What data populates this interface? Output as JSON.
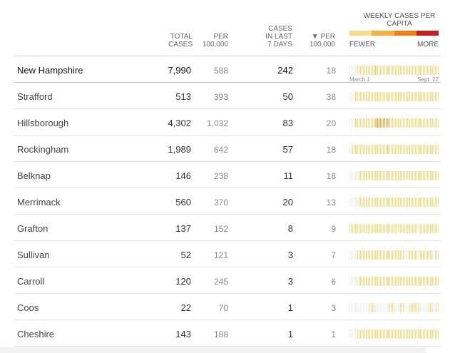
{
  "header": {
    "total_cases": "TOTAL\nCASES",
    "per_100k": "PER\n100,000",
    "cases_last_7": "CASES\nIN LAST\n7 DAYS",
    "per_100k_sorted": "▼ PER\n100,000",
    "legend_title": "WEEKLY CASES PER CAPITA",
    "legend_low": "FEWER",
    "legend_high": "MORE"
  },
  "colors": {
    "legend": [
      "#f6dd8c",
      "#f5b041",
      "#ef7d1a",
      "#c81e1e"
    ],
    "level0": "#f0f0f0",
    "level1": "#f6dd8c",
    "level2": "#f4c46a",
    "level3": "#f0a840"
  },
  "date_start": "March 1",
  "date_end": "Sept. 22",
  "rows": [
    {
      "name": "New Hampshire",
      "total": "7,990",
      "per100k": "588",
      "last7": "242",
      "per100k7": "18",
      "is_state": true,
      "spark": "0000001111111111112211111111111111111111111111111111111111111111111"
    },
    {
      "name": "Strafford",
      "total": "513",
      "per100k": "393",
      "last7": "50",
      "per100k7": "38",
      "is_state": false,
      "spark": "0000111111111111111111111111111111111111111111111111111111111111111"
    },
    {
      "name": "Hillsborough",
      "total": "4,302",
      "per100k": "1,032",
      "last7": "83",
      "per100k7": "20",
      "is_state": false,
      "spark": "0000111111111111112233333333222111111111111111111111111111111111111"
    },
    {
      "name": "Rockingham",
      "total": "1,989",
      "per100k": "642",
      "last7": "57",
      "per100k7": "18",
      "is_state": false,
      "spark": "0011111111111111111111111111211111111111111111111111111111111111111"
    },
    {
      "name": "Belknap",
      "total": "146",
      "per100k": "238",
      "last7": "11",
      "per100k7": "18",
      "is_state": false,
      "spark": "0000000111111111111111111111111111111111111111111111111111111111111"
    },
    {
      "name": "Merrimack",
      "total": "560",
      "per100k": "370",
      "last7": "20",
      "per100k7": "13",
      "is_state": false,
      "spark": "0000000111111111111111111111111111111111111111111111111111111111111"
    },
    {
      "name": "Grafton",
      "total": "137",
      "per100k": "152",
      "last7": "8",
      "per100k7": "9",
      "is_state": false,
      "spark": "1111111111111111111111111111111111110111111111111110011111111111111"
    },
    {
      "name": "Sullivan",
      "total": "52",
      "per100k": "121",
      "last7": "3",
      "per100k7": "7",
      "is_state": false,
      "spark": "0000001111111111111111111111111111111111100011111110011111111100111"
    },
    {
      "name": "Carroll",
      "total": "120",
      "per100k": "245",
      "last7": "3",
      "per100k7": "6",
      "is_state": false,
      "spark": "0000000111111111111111111111111111111111111111111111111111111111111"
    },
    {
      "name": "Coos",
      "total": "22",
      "per100k": "70",
      "last7": "1",
      "per100k7": "3",
      "is_state": false,
      "spark": "0000000000000001111000000000001111000011100001111111000000011100011"
    },
    {
      "name": "Cheshire",
      "total": "143",
      "per100k": "188",
      "last7": "1",
      "per100k7": "1",
      "is_state": false,
      "spark": "0000001111111111111111111111111111111111111111111111111111111111111"
    }
  ]
}
